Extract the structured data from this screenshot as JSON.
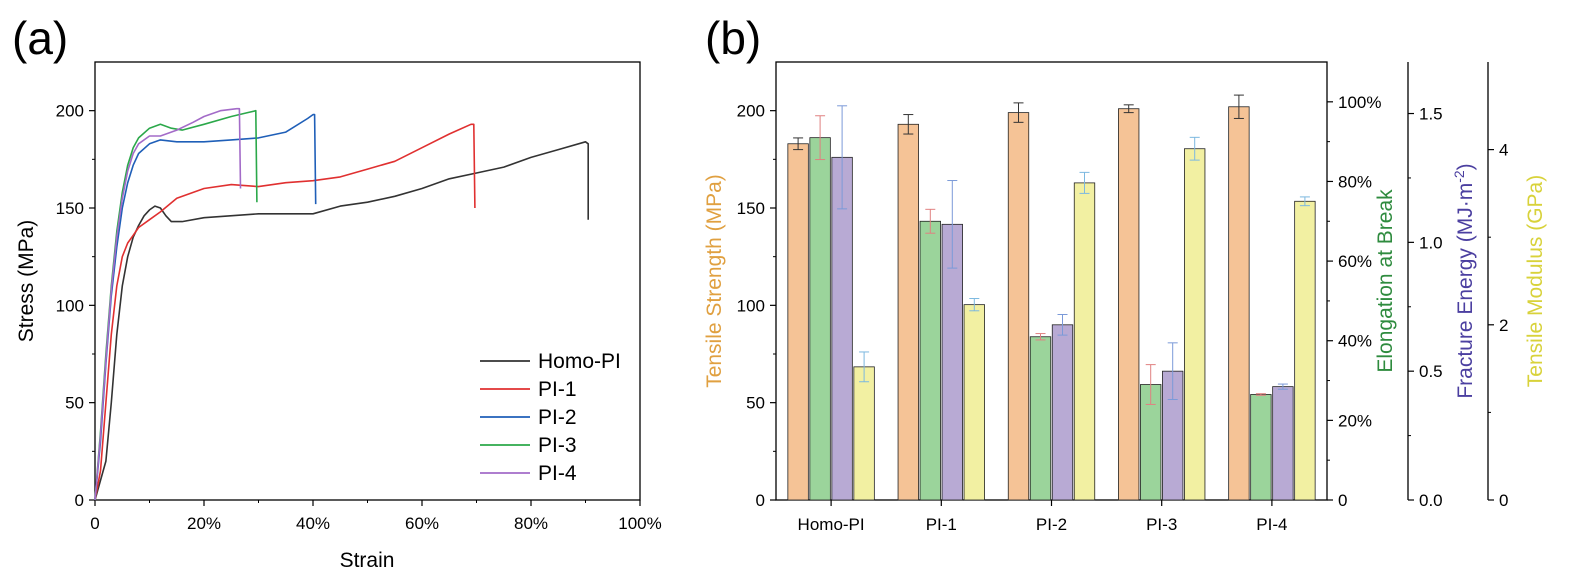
{
  "chart_data": [
    {
      "panel_label": "(a)",
      "type": "line",
      "xlabel": "Strain",
      "ylabel": "Stress (MPa)",
      "xlim": [
        0,
        1.0
      ],
      "ylim": [
        0,
        225
      ],
      "xticks": [
        0,
        0.2,
        0.4,
        0.6,
        0.8,
        1.0
      ],
      "xtick_labels": [
        "0",
        "20%",
        "40%",
        "60%",
        "80%",
        "100%"
      ],
      "yticks": [
        0,
        50,
        100,
        150,
        200
      ],
      "ytick_labels": [
        "0",
        "50",
        "100",
        "150",
        "200"
      ],
      "legend_position": "bottom-right",
      "series": [
        {
          "name": "Homo-PI",
          "color": "#333333",
          "points": [
            [
              0,
              0
            ],
            [
              0.02,
              20
            ],
            [
              0.03,
              50
            ],
            [
              0.04,
              85
            ],
            [
              0.05,
              110
            ],
            [
              0.06,
              125
            ],
            [
              0.07,
              135
            ],
            [
              0.08,
              141
            ],
            [
              0.09,
              146
            ],
            [
              0.1,
              149
            ],
            [
              0.11,
              151
            ],
            [
              0.12,
              150
            ],
            [
              0.13,
              146
            ],
            [
              0.14,
              143
            ],
            [
              0.16,
              143
            ],
            [
              0.2,
              145
            ],
            [
              0.3,
              147
            ],
            [
              0.35,
              147
            ],
            [
              0.4,
              147
            ],
            [
              0.45,
              151
            ],
            [
              0.5,
              153
            ],
            [
              0.55,
              156
            ],
            [
              0.6,
              160
            ],
            [
              0.65,
              165
            ],
            [
              0.7,
              168
            ],
            [
              0.75,
              171
            ],
            [
              0.8,
              176
            ],
            [
              0.85,
              180
            ],
            [
              0.9,
              184
            ],
            [
              0.905,
              183
            ],
            [
              0.905,
              144
            ]
          ]
        },
        {
          "name": "PI-1",
          "color": "#e03030",
          "points": [
            [
              0,
              0
            ],
            [
              0.01,
              15
            ],
            [
              0.02,
              50
            ],
            [
              0.03,
              85
            ],
            [
              0.04,
              110
            ],
            [
              0.05,
              125
            ],
            [
              0.06,
              132
            ],
            [
              0.07,
              136
            ],
            [
              0.08,
              140
            ],
            [
              0.1,
              144
            ],
            [
              0.12,
              148
            ],
            [
              0.15,
              155
            ],
            [
              0.2,
              160
            ],
            [
              0.25,
              162
            ],
            [
              0.3,
              161
            ],
            [
              0.35,
              163
            ],
            [
              0.4,
              164
            ],
            [
              0.45,
              166
            ],
            [
              0.5,
              170
            ],
            [
              0.55,
              174
            ],
            [
              0.6,
              181
            ],
            [
              0.65,
              188
            ],
            [
              0.69,
              193
            ],
            [
              0.695,
              193
            ],
            [
              0.697,
              150
            ]
          ]
        },
        {
          "name": "PI-2",
          "color": "#1f5fb8",
          "points": [
            [
              0,
              0
            ],
            [
              0.01,
              30
            ],
            [
              0.02,
              70
            ],
            [
              0.03,
              105
            ],
            [
              0.04,
              130
            ],
            [
              0.05,
              150
            ],
            [
              0.06,
              163
            ],
            [
              0.07,
              172
            ],
            [
              0.08,
              178
            ],
            [
              0.1,
              183
            ],
            [
              0.12,
              185
            ],
            [
              0.15,
              184
            ],
            [
              0.2,
              184
            ],
            [
              0.25,
              185
            ],
            [
              0.3,
              186
            ],
            [
              0.35,
              189
            ],
            [
              0.39,
              196
            ],
            [
              0.4,
              198
            ],
            [
              0.403,
              198
            ],
            [
              0.405,
              152
            ]
          ]
        },
        {
          "name": "PI-3",
          "color": "#2ba84a",
          "points": [
            [
              0,
              0
            ],
            [
              0.01,
              35
            ],
            [
              0.02,
              75
            ],
            [
              0.03,
              110
            ],
            [
              0.04,
              138
            ],
            [
              0.05,
              158
            ],
            [
              0.06,
              172
            ],
            [
              0.07,
              181
            ],
            [
              0.08,
              186
            ],
            [
              0.1,
              191
            ],
            [
              0.12,
              193
            ],
            [
              0.14,
              191
            ],
            [
              0.16,
              190
            ],
            [
              0.2,
              193
            ],
            [
              0.25,
              197
            ],
            [
              0.28,
              199
            ],
            [
              0.295,
              200
            ],
            [
              0.297,
              153
            ]
          ]
        },
        {
          "name": "PI-4",
          "color": "#a36bc8",
          "points": [
            [
              0,
              0
            ],
            [
              0.01,
              33
            ],
            [
              0.02,
              72
            ],
            [
              0.03,
              108
            ],
            [
              0.04,
              135
            ],
            [
              0.05,
              155
            ],
            [
              0.06,
              169
            ],
            [
              0.07,
              178
            ],
            [
              0.08,
              183
            ],
            [
              0.1,
              187
            ],
            [
              0.12,
              187
            ],
            [
              0.15,
              190
            ],
            [
              0.18,
              194
            ],
            [
              0.2,
              197
            ],
            [
              0.23,
              200
            ],
            [
              0.26,
              201
            ],
            [
              0.265,
              201
            ],
            [
              0.267,
              160
            ]
          ]
        }
      ]
    },
    {
      "panel_label": "(b)",
      "type": "bar",
      "categories": [
        "Homo-PI",
        "PI-1",
        "PI-2",
        "PI-3",
        "PI-4"
      ],
      "axes": [
        {
          "key": "tensile_strength",
          "label": "Tensile Strength (MPa)",
          "color": "#e0a040",
          "ylim": [
            0,
            225
          ],
          "ticks": [
            0,
            50,
            100,
            150,
            200
          ],
          "tick_labels": [
            "0",
            "50",
            "100",
            "150",
            "200"
          ],
          "side": "left"
        },
        {
          "key": "elongation",
          "label": "Elongation at Break",
          "color": "#2e8b3e",
          "ylim": [
            0,
            1.1
          ],
          "ticks": [
            0,
            0.2,
            0.4,
            0.6,
            0.8,
            1.0
          ],
          "tick_labels": [
            "0",
            "20%",
            "40%",
            "60%",
            "80%",
            "100%"
          ],
          "side": "right"
        },
        {
          "key": "fracture_energy",
          "label_main": "Fracture Energy (MJ·m",
          "label_sup": "-2",
          "label_end": ")",
          "color": "#4b3fa0",
          "ylim": [
            0,
            1.7
          ],
          "ticks": [
            0,
            0.5,
            1.0,
            1.5
          ],
          "tick_labels": [
            "0.0",
            "0.5",
            "1.0",
            "1.5"
          ],
          "side": "right"
        },
        {
          "key": "modulus",
          "label": "Tensile Modulus (GPa)",
          "color": "#d8d23a",
          "ylim": [
            0,
            5.0
          ],
          "ticks": [
            0,
            2,
            4
          ],
          "tick_labels": [
            "0",
            "2",
            "4"
          ],
          "side": "right"
        }
      ],
      "series": [
        {
          "axis": "tensile_strength",
          "fill": "#f5c396",
          "err_color": "#333333",
          "values": [
            183,
            193,
            199,
            201,
            202
          ],
          "errors": [
            3,
            5,
            5,
            2,
            6
          ]
        },
        {
          "axis": "elongation",
          "fill": "#9bd49b",
          "err_color": "#e08080",
          "values": [
            0.91,
            0.7,
            0.41,
            0.29,
            0.265
          ],
          "errors": [
            0.055,
            0.03,
            0.008,
            0.05,
            0.002
          ]
        },
        {
          "axis": "fracture_energy",
          "fill": "#b8aad4",
          "err_color": "#7b9ad8",
          "values": [
            1.33,
            1.07,
            0.68,
            0.5,
            0.44
          ],
          "errors": [
            0.2,
            0.17,
            0.04,
            0.11,
            0.01
          ]
        },
        {
          "axis": "modulus",
          "fill": "#f2f0a2",
          "err_color": "#7cb8e0",
          "values": [
            1.52,
            2.23,
            3.62,
            4.01,
            3.41
          ],
          "errors": [
            0.17,
            0.07,
            0.12,
            0.13,
            0.05
          ]
        }
      ]
    }
  ]
}
